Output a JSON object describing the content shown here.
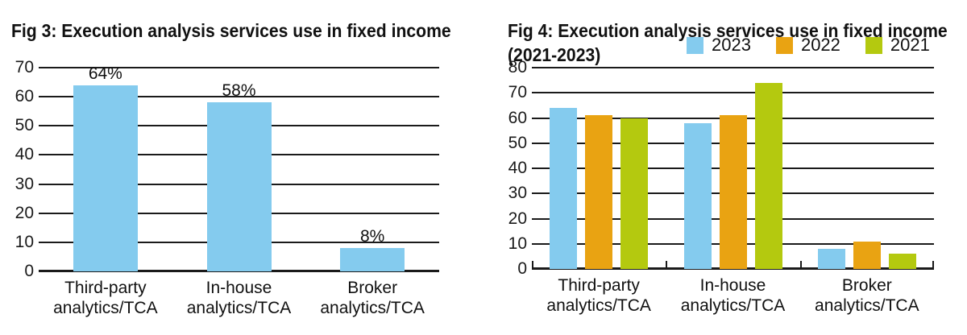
{
  "accent_colors": {
    "blue_2023": "#84CBEE",
    "orange_2022": "#E9A312",
    "green_2021": "#B4C90F",
    "axis": "#1A1A1A"
  },
  "chart_data": [
    {
      "type": "bar",
      "title": "Fig 3: Execution analysis services use in fixed income",
      "categories": [
        "Third-party\nanalytics/TCA",
        "In-house\nanalytics/TCA",
        "Broker\nanalytics/TCA"
      ],
      "values": [
        64,
        58,
        8
      ],
      "data_labels": [
        "64%",
        "58%",
        "8%"
      ],
      "bar_color": "#84CBEE",
      "xlabel": "",
      "ylabel": "",
      "ylim": [
        0,
        70
      ],
      "yticks": [
        0,
        10,
        20,
        30,
        40,
        50,
        60,
        70
      ],
      "grid": true,
      "legend": "none"
    },
    {
      "type": "bar",
      "title": "Fig 4: Execution analysis services use in fixed income",
      "subtitle": "(2021-2023)",
      "categories": [
        "Third-party\nanalytics/TCA",
        "In-house\nanalytics/TCA",
        "Broker\nanalytics/TCA"
      ],
      "series": [
        {
          "name": "2023",
          "color": "#84CBEE",
          "values": [
            64,
            58,
            8
          ]
        },
        {
          "name": "2022",
          "color": "#E9A312",
          "values": [
            61,
            61,
            11
          ]
        },
        {
          "name": "2021",
          "color": "#B4C90F",
          "values": [
            60,
            74,
            6
          ]
        }
      ],
      "xlabel": "",
      "ylabel": "",
      "ylim": [
        0,
        80
      ],
      "yticks": [
        0,
        10,
        20,
        30,
        40,
        50,
        60,
        70,
        80
      ],
      "grid": true,
      "legend_position": "top-right"
    }
  ]
}
